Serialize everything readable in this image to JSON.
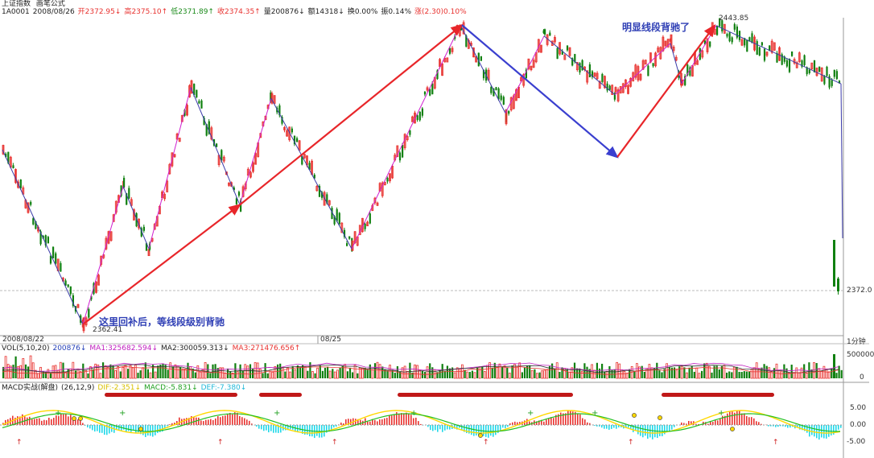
{
  "header": {
    "index_name": "上证指数",
    "formula_label": "画笔公式",
    "code": "1A0001",
    "date": "2008/08/26",
    "open": "开2372.95↓",
    "high": "高2375.10↑",
    "low": "低2371.89↑",
    "close": "收2374.35↑",
    "volume": "量200876↓",
    "amount": "额14318↓",
    "turnover": "换0.00%",
    "amplitude": "振0.14%",
    "change": "涨(2.30)0.10%"
  },
  "annotations": {
    "left_note": "这里回补后，等线段级别背驰",
    "right_note": "明显线段背驰了"
  },
  "price_labels": {
    "high": "2443.85",
    "low": "2362.41",
    "last": "2372.0"
  },
  "time_axis": {
    "start": "2008/08/22",
    "mid": "08/25",
    "period": "1分钟"
  },
  "volume_panel": {
    "title": "VOL(5,10,20)",
    "vol": "200876↓",
    "ma1": "MA1:325682.594↓",
    "ma2": "MA2:300059.313↓",
    "ma3": "MA3:271476.656↑",
    "axis_top": "500000",
    "axis_zero": "0"
  },
  "macd_panel": {
    "title": "MACD实战(解盘)",
    "params": "(26,12,9)",
    "dif": "DIF:-2.351↓",
    "macd": "MACD:-5.831↓",
    "dea": "DEF:-7.380↓",
    "axis": [
      "5.00",
      "0.00",
      "-5.00"
    ]
  },
  "colors": {
    "up": "#e8322f",
    "down": "#108010",
    "stroke_line": "#d020d0",
    "segment_line": "#3a3aa8",
    "red_arrow": "#e8262a",
    "blue_arrow": "#3a3fcf",
    "cyan_bar": "#20d8e8",
    "dif_line": "#ffd800",
    "dea_line": "#20c020"
  },
  "chart_data": {
    "type": "candlestick",
    "title": "上证指数",
    "bi_points": [
      [
        "08/22 09:31",
        2410
      ],
      [
        "08/22 10:10",
        2362.41
      ],
      [
        "08/22 10:40",
        2400
      ],
      [
        "08/22 11:00",
        2383
      ],
      [
        "08/22 13:30",
        2427
      ],
      [
        "08/22 13:55",
        2395
      ],
      [
        "08/22 14:20",
        2424
      ],
      [
        "08/22 14:50",
        2383
      ],
      [
        "08/25 09:45",
        2444
      ],
      [
        "08/25 10:30",
        2420
      ],
      [
        "08/25 10:55",
        2441
      ],
      [
        "08/25 11:20",
        2425
      ],
      [
        "08/25 13:40",
        2439
      ],
      [
        "08/25 14:00",
        2428
      ],
      [
        "08/25 14:25",
        2443.85
      ],
      [
        "08/25 14:50",
        2428
      ]
    ],
    "series": [
      {
        "name": "VOL",
        "last": 200876
      },
      {
        "name": "MA1",
        "last": 325682.594
      },
      {
        "name": "MA2",
        "last": 300059.313
      },
      {
        "name": "MA3",
        "last": 271476.656
      }
    ],
    "ylim": [
      2360,
      2446
    ],
    "grid": false
  }
}
